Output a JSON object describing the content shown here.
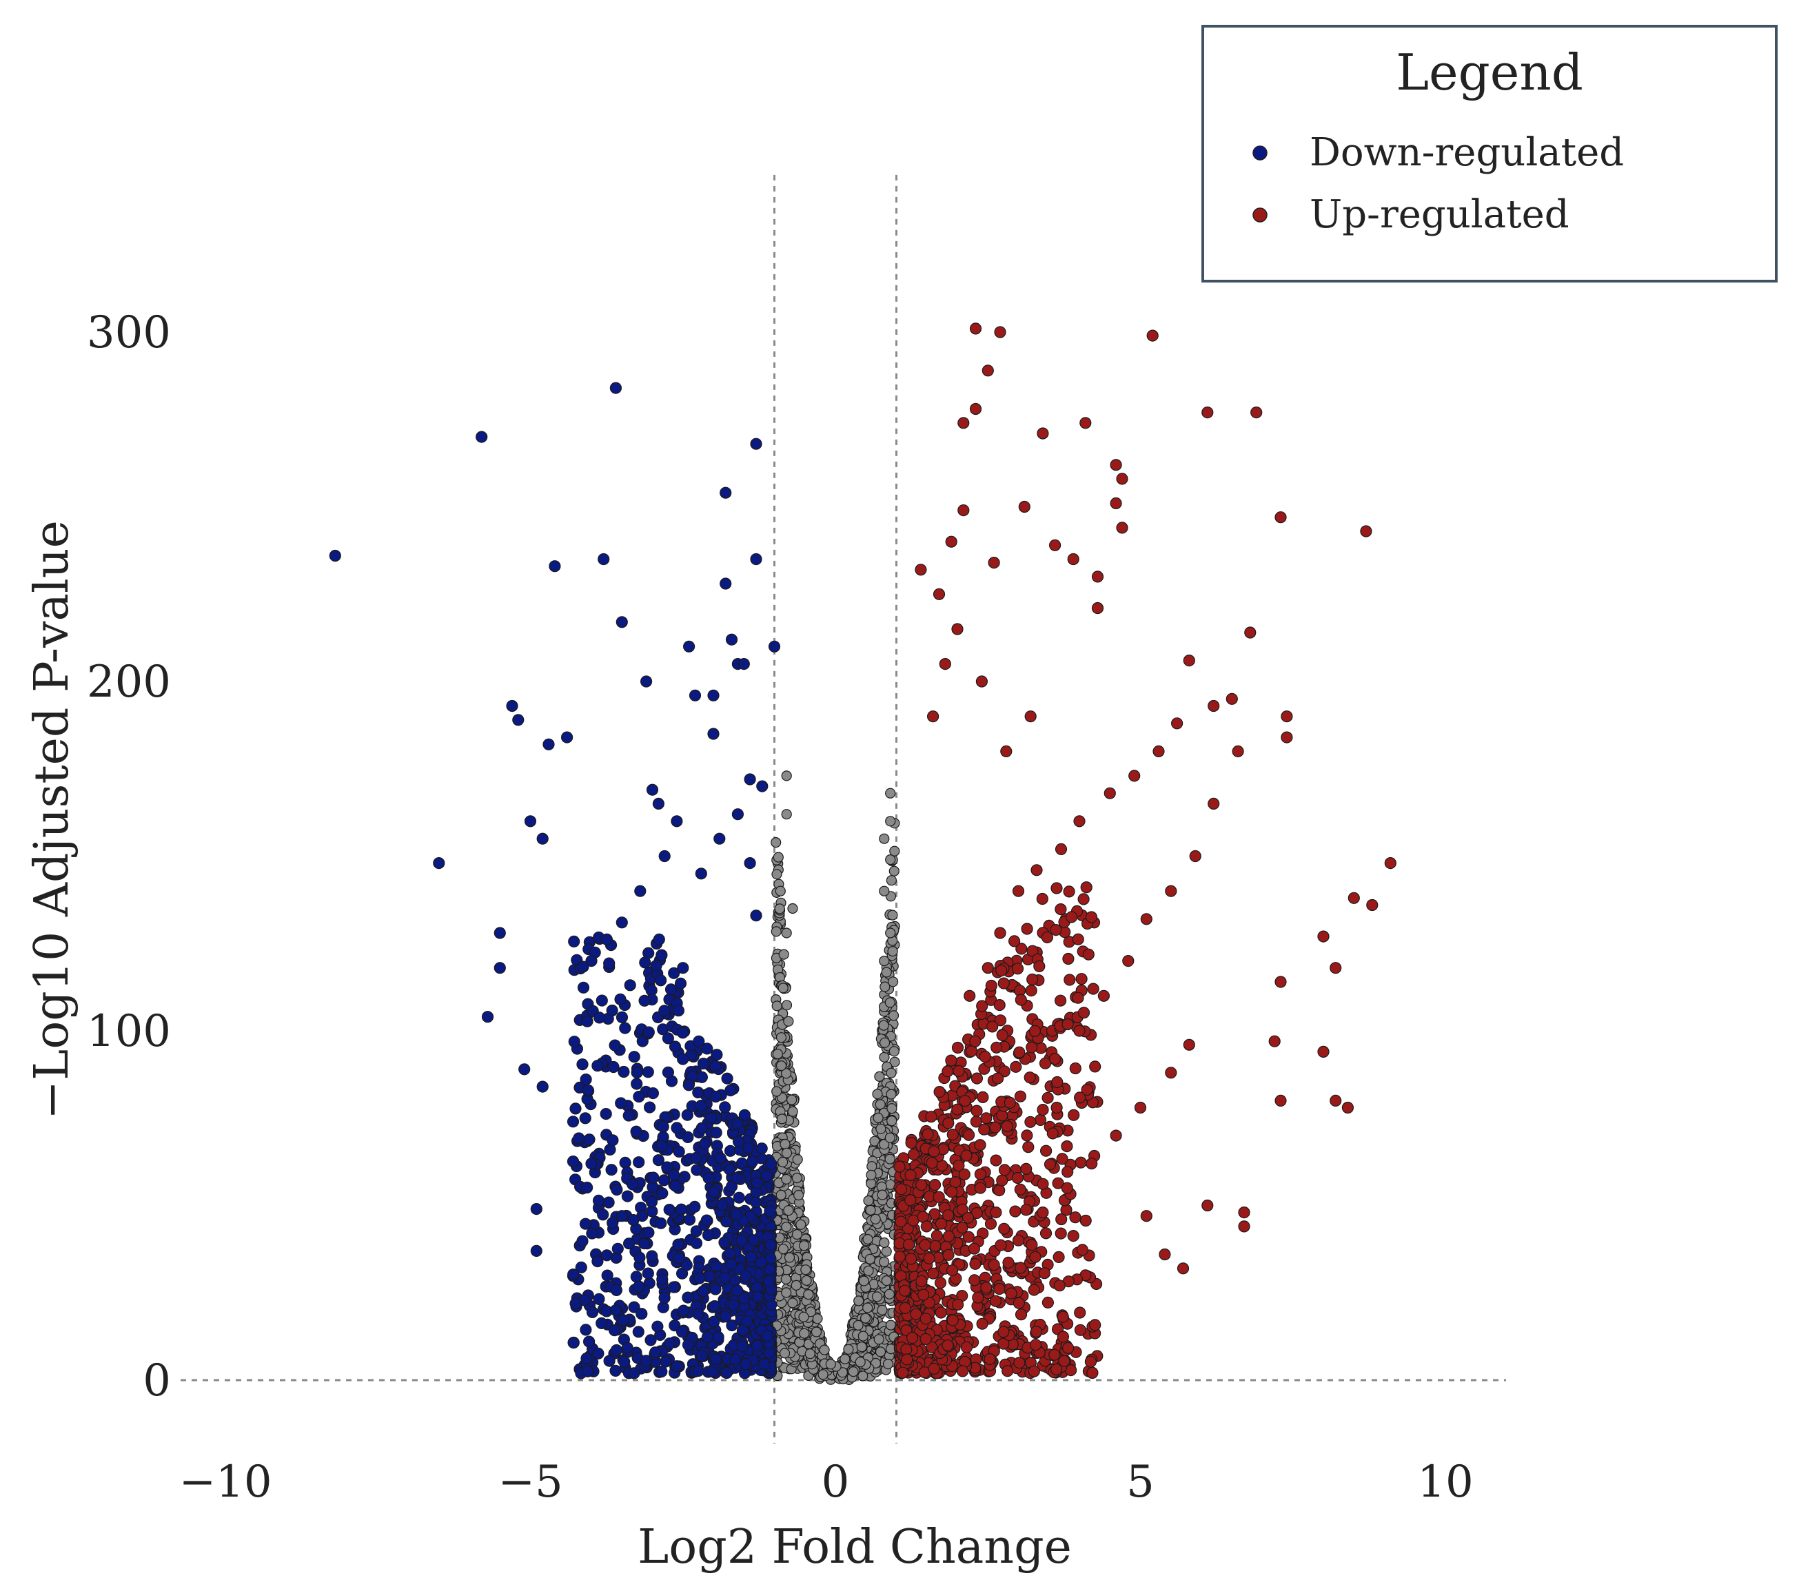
{
  "chart_data": {
    "type": "scatter",
    "title": "",
    "xlabel": "Log2 Fold Change",
    "ylabel": "−Log10 Adjusted P-value",
    "xlim": [
      -10.5,
      10.5
    ],
    "ylim": [
      -10,
      345
    ],
    "x_ticks": [
      -10,
      -5,
      0,
      5,
      10
    ],
    "y_ticks": [
      0,
      100,
      200,
      300
    ],
    "x_tick_labels": [
      "−10",
      "−5",
      "0",
      "5",
      "10"
    ],
    "y_tick_labels": [
      "0",
      "100",
      "200",
      "300"
    ],
    "threshold_lines": {
      "x": [
        -1,
        1
      ],
      "y": [
        0
      ]
    },
    "grid": false,
    "legend": {
      "title": "Legend",
      "placement": "top-right",
      "entries": [
        "Down-regulated",
        "Up-regulated"
      ]
    },
    "colors": {
      "Down-regulated": "#0b1a80",
      "Up-regulated": "#9a1a1a",
      "Not significant": "#8a8a8a"
    },
    "series": [
      {
        "name": "Down-regulated",
        "points": [
          [
            -8.2,
            236
          ],
          [
            -5.8,
            270
          ],
          [
            -3.6,
            284
          ],
          [
            -6.5,
            148
          ],
          [
            -5.7,
            104
          ],
          [
            -4.6,
            233
          ],
          [
            -3.8,
            235
          ],
          [
            -1.8,
            254
          ],
          [
            -1.3,
            268
          ],
          [
            -1.3,
            235
          ],
          [
            -1.8,
            228
          ],
          [
            -3.5,
            217
          ],
          [
            -1.7,
            212
          ],
          [
            -2.4,
            210
          ],
          [
            -1.0,
            210
          ],
          [
            -1.6,
            205
          ],
          [
            -1.5,
            205
          ],
          [
            -3.1,
            200
          ],
          [
            -5.3,
            193
          ],
          [
            -5.2,
            189
          ],
          [
            -4.9,
            49
          ],
          [
            -4.9,
            37
          ],
          [
            -3.3,
            2
          ],
          [
            -2.6,
            4
          ],
          [
            -5.1,
            89
          ],
          [
            -4.8,
            84
          ],
          [
            -4.3,
            74
          ],
          [
            -4.7,
            182
          ],
          [
            -4.4,
            184
          ],
          [
            -5.0,
            160
          ],
          [
            -4.8,
            155
          ],
          [
            -5.5,
            128
          ],
          [
            -5.5,
            118
          ],
          [
            -2.0,
            196
          ],
          [
            -2.3,
            196
          ],
          [
            -2.0,
            185
          ],
          [
            -1.4,
            172
          ],
          [
            -1.2,
            170
          ],
          [
            -3.0,
            169
          ],
          [
            -2.9,
            165
          ],
          [
            -3.6,
            20
          ],
          [
            -3.9,
            34
          ],
          [
            -3.5,
            47
          ],
          [
            -4.0,
            62
          ],
          [
            -4.1,
            75
          ],
          [
            -3.9,
            90
          ],
          [
            -4.0,
            120
          ],
          [
            -3.5,
            131
          ],
          [
            -3.2,
            140
          ],
          [
            -2.8,
            150
          ],
          [
            -2.6,
            160
          ],
          [
            -2.2,
            145
          ],
          [
            -1.9,
            155
          ],
          [
            -1.6,
            162
          ],
          [
            -1.4,
            148
          ],
          [
            -1.3,
            133
          ],
          [
            -2.5,
            118
          ]
        ],
        "cloud": {
          "x_range": [
            -4.3,
            -1.05
          ],
          "y_range": [
            2,
            125
          ],
          "count": 900,
          "seed": 11
        }
      },
      {
        "name": "Up-regulated",
        "points": [
          [
            2.3,
            301
          ],
          [
            2.7,
            300
          ],
          [
            5.2,
            299
          ],
          [
            2.5,
            289
          ],
          [
            2.3,
            278
          ],
          [
            2.1,
            274
          ],
          [
            6.1,
            277
          ],
          [
            6.9,
            277
          ],
          [
            4.1,
            274
          ],
          [
            3.4,
            271
          ],
          [
            4.6,
            262
          ],
          [
            4.7,
            258
          ],
          [
            4.6,
            251
          ],
          [
            3.1,
            250
          ],
          [
            2.1,
            249
          ],
          [
            4.7,
            244
          ],
          [
            7.3,
            247
          ],
          [
            8.7,
            243
          ],
          [
            1.9,
            240
          ],
          [
            3.6,
            239
          ],
          [
            3.9,
            235
          ],
          [
            2.6,
            234
          ],
          [
            1.4,
            232
          ],
          [
            1.7,
            225
          ],
          [
            4.3,
            230
          ],
          [
            4.3,
            221
          ],
          [
            6.8,
            214
          ],
          [
            5.8,
            206
          ],
          [
            7.4,
            190
          ],
          [
            7.4,
            184
          ],
          [
            9.1,
            148
          ],
          [
            8.8,
            136
          ],
          [
            8.5,
            138
          ],
          [
            8.0,
            127
          ],
          [
            8.2,
            118
          ],
          [
            8.0,
            94
          ],
          [
            8.2,
            80
          ],
          [
            8.4,
            78
          ],
          [
            7.3,
            114
          ],
          [
            7.2,
            97
          ],
          [
            7.3,
            80
          ],
          [
            6.7,
            48
          ],
          [
            6.7,
            44
          ],
          [
            6.1,
            50
          ],
          [
            5.7,
            32
          ],
          [
            5.4,
            36
          ],
          [
            5.1,
            47
          ],
          [
            6.5,
            195
          ],
          [
            6.2,
            193
          ],
          [
            5.6,
            188
          ],
          [
            5.3,
            180
          ],
          [
            4.9,
            173
          ],
          [
            4.5,
            168
          ],
          [
            4.0,
            160
          ],
          [
            3.7,
            152
          ],
          [
            3.3,
            146
          ],
          [
            3.0,
            140
          ],
          [
            2.7,
            128
          ],
          [
            2.5,
            118
          ],
          [
            2.2,
            110
          ],
          [
            5.8,
            96
          ],
          [
            5.5,
            88
          ],
          [
            5.0,
            78
          ],
          [
            4.6,
            70
          ],
          [
            4.2,
            62
          ],
          [
            3.8,
            55
          ],
          [
            3.4,
            48
          ],
          [
            3.0,
            40
          ],
          [
            2.6,
            33
          ],
          [
            6.6,
            180
          ],
          [
            6.2,
            165
          ],
          [
            5.9,
            150
          ],
          [
            5.5,
            140
          ],
          [
            5.1,
            132
          ],
          [
            4.8,
            120
          ],
          [
            4.4,
            110
          ],
          [
            4.0,
            100
          ],
          [
            3.6,
            92
          ],
          [
            2.4,
            200
          ],
          [
            2.8,
            180
          ],
          [
            3.2,
            190
          ],
          [
            1.6,
            190
          ],
          [
            1.8,
            205
          ],
          [
            2.0,
            215
          ]
        ],
        "cloud": {
          "x_range": [
            1.05,
            4.3
          ],
          "y_range": [
            2,
            140
          ],
          "count": 1000,
          "seed": 23
        }
      },
      {
        "name": "Not significant",
        "points": [
          [
            -0.8,
            173
          ],
          [
            -0.8,
            162
          ],
          [
            -0.9,
            140
          ],
          [
            -0.7,
            135
          ],
          [
            -0.8,
            128
          ],
          [
            0.9,
            168
          ],
          [
            0.9,
            160
          ],
          [
            0.8,
            155
          ],
          [
            0.9,
            149
          ],
          [
            0.8,
            140
          ],
          [
            0.9,
            128
          ],
          [
            0.8,
            120
          ]
        ],
        "cloud": {
          "x_range": [
            -0.98,
            0.98
          ],
          "y_range": [
            0,
            165
          ],
          "count": 1300,
          "seed": 37
        }
      }
    ]
  }
}
